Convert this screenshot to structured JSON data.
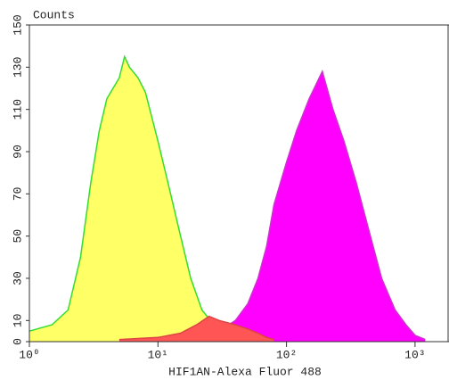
{
  "chart_data": {
    "type": "histogram-overlay",
    "ylabel": "Counts",
    "xlabel": "HIF1AN-Alexa Fluor 488",
    "xscale": "log",
    "xlim": [
      1,
      1837
    ],
    "ylim": [
      0,
      150
    ],
    "xticks": [
      {
        "value": 1,
        "label": "10⁰"
      },
      {
        "value": 10,
        "label": "10¹"
      },
      {
        "value": 100,
        "label": "10²"
      },
      {
        "value": 1000,
        "label": "10³"
      }
    ],
    "yticks": [
      0,
      10,
      30,
      50,
      70,
      90,
      110,
      130,
      150
    ],
    "series": [
      {
        "color": "#ffff66",
        "edge": "#33dd33",
        "x": [
          1,
          1.5,
          2,
          2.5,
          3,
          3.5,
          4,
          5,
          5.5,
          6,
          7,
          8,
          10,
          12,
          15,
          18,
          22,
          28,
          35,
          50
        ],
        "values": [
          5,
          8,
          15,
          40,
          75,
          100,
          115,
          125,
          135,
          130,
          125,
          118,
          95,
          75,
          50,
          30,
          15,
          7,
          3,
          1
        ]
      },
      {
        "color": "#ff00ff",
        "edge": "#cc33cc",
        "x": [
          25,
          30,
          40,
          50,
          60,
          70,
          80,
          100,
          120,
          150,
          190,
          230,
          280,
          350,
          450,
          550,
          700,
          850,
          1000,
          1200
        ],
        "values": [
          2,
          5,
          10,
          18,
          30,
          45,
          65,
          85,
          100,
          115,
          128,
          110,
          95,
          75,
          50,
          30,
          15,
          8,
          3,
          1
        ]
      },
      {
        "color": "#ff5555",
        "edge": "#dd4444",
        "x": [
          5,
          10,
          15,
          20,
          25,
          30,
          40,
          50,
          60,
          70,
          80
        ],
        "values": [
          1,
          2,
          4,
          8,
          12,
          10,
          8,
          6,
          4,
          2,
          1
        ]
      }
    ]
  }
}
